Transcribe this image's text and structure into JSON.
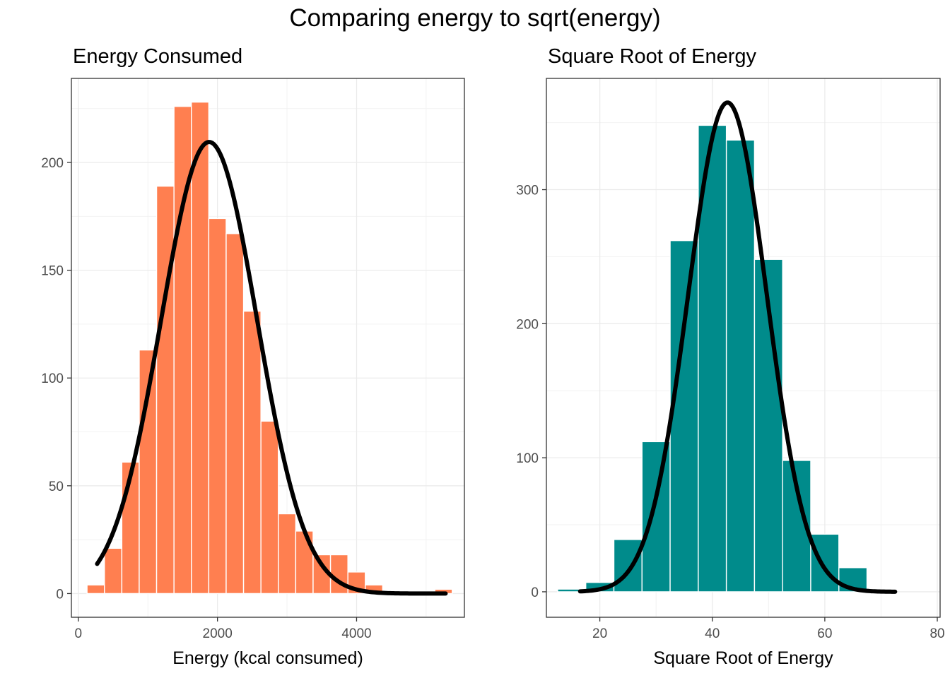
{
  "title": "Comparing energy to sqrt(energy)",
  "chart_data": [
    {
      "type": "bar",
      "title": "Energy Consumed",
      "xlabel": "Energy (kcal consumed)",
      "ylabel": "",
      "fill_color": "#FF7F50",
      "curve_color": "#000000",
      "grid": true,
      "xlim": [
        -100,
        5550
      ],
      "ylim": [
        -11,
        239
      ],
      "xticks": [
        0,
        2000,
        4000
      ],
      "yticks": [
        0,
        50,
        100,
        150,
        200
      ],
      "bin_width": 250,
      "bins": [
        {
          "x": 250,
          "count": 4
        },
        {
          "x": 500,
          "count": 21
        },
        {
          "x": 750,
          "count": 61
        },
        {
          "x": 1000,
          "count": 113
        },
        {
          "x": 1250,
          "count": 189
        },
        {
          "x": 1500,
          "count": 226
        },
        {
          "x": 1750,
          "count": 228
        },
        {
          "x": 2000,
          "count": 174
        },
        {
          "x": 2250,
          "count": 167
        },
        {
          "x": 2500,
          "count": 131
        },
        {
          "x": 2750,
          "count": 80
        },
        {
          "x": 3000,
          "count": 37
        },
        {
          "x": 3250,
          "count": 29
        },
        {
          "x": 3500,
          "count": 18
        },
        {
          "x": 3750,
          "count": 18
        },
        {
          "x": 4000,
          "count": 10
        },
        {
          "x": 4250,
          "count": 4
        },
        {
          "x": 4500,
          "count": 1
        },
        {
          "x": 4750,
          "count": 1
        },
        {
          "x": 5000,
          "count": 1
        },
        {
          "x": 5250,
          "count": 2
        }
      ],
      "normal_curve": {
        "mean": 1880,
        "sd": 690,
        "peak": 209.5,
        "x_range": [
          270,
          5280
        ]
      }
    },
    {
      "type": "bar",
      "title": "Square Root of Energy",
      "xlabel": "Square Root of Energy",
      "ylabel": "",
      "fill_color": "#008B8B",
      "curve_color": "#000000",
      "grid": true,
      "xlim": [
        10.5,
        80.5
      ],
      "ylim": [
        -19,
        383
      ],
      "xticks": [
        20,
        40,
        60,
        80
      ],
      "yticks": [
        0,
        100,
        200,
        300
      ],
      "bin_width": 5,
      "bins": [
        {
          "x": 15,
          "count": 2
        },
        {
          "x": 20,
          "count": 7
        },
        {
          "x": 25,
          "count": 39
        },
        {
          "x": 30,
          "count": 112
        },
        {
          "x": 35,
          "count": 262
        },
        {
          "x": 40,
          "count": 348
        },
        {
          "x": 45,
          "count": 337
        },
        {
          "x": 50,
          "count": 248
        },
        {
          "x": 55,
          "count": 98
        },
        {
          "x": 60,
          "count": 43
        },
        {
          "x": 65,
          "count": 18
        }
      ],
      "normal_curve": {
        "mean": 42.7,
        "sd": 7.0,
        "peak": 365,
        "x_range": [
          16.5,
          72.5
        ]
      }
    }
  ]
}
